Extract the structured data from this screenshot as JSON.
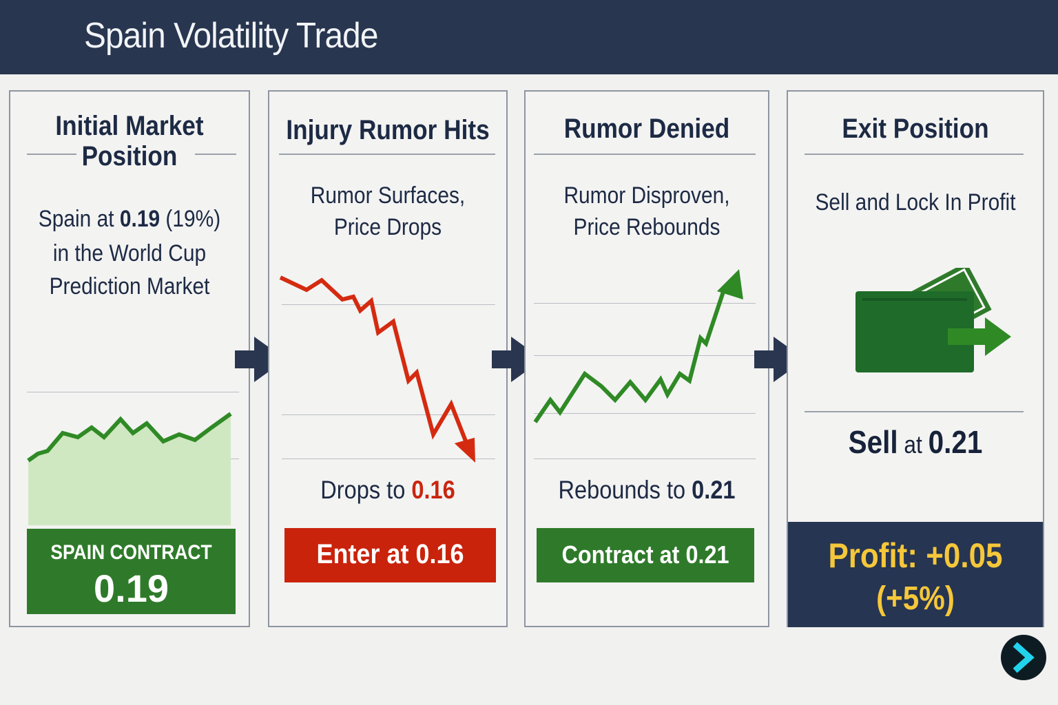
{
  "header": {
    "title": "Spain Volatility Trade"
  },
  "panels": [
    {
      "title_line1": "Initial Market",
      "title_line2": "Position",
      "desc_line1_prefix": "Spain at ",
      "desc_line1_bold": "0.19",
      "desc_line1_suffix": " (19%)",
      "desc_line2": "in the World Cup",
      "desc_line3": "Prediction Market",
      "box_label": "SPAIN CONTRACT",
      "box_value": "0.19"
    },
    {
      "title": "Injury Rumor Hits",
      "desc_line1": "Rumor Surfaces,",
      "desc_line2": "Price Drops",
      "note_prefix": "Drops to ",
      "note_value": "0.16",
      "box_label": "Enter at 0.16"
    },
    {
      "title": "Rumor Denied",
      "desc_line1": "Rumor Disproven,",
      "desc_line2": "Price Rebounds",
      "note_prefix": "Rebounds to ",
      "note_value": "0.21",
      "box_label": "Contract at 0.21"
    },
    {
      "title": "Exit Position",
      "desc": "Sell and Lock In Profit",
      "sell_prefix": "Sell",
      "sell_mid": " at ",
      "sell_value": "0.21",
      "profit_line1": "Profit: +0.05",
      "profit_line2": "(+5%)"
    }
  ],
  "icons": {
    "flow_arrow": "right-arrow-icon",
    "cash": "cash-wallet-icon",
    "next": "chevron-right-icon"
  },
  "colors": {
    "header": "#283650",
    "green": "#2f7a2a",
    "red": "#c9230c",
    "navy": "#263551",
    "profit": "#f5c73a",
    "next_chevron": "#22d3ee"
  }
}
